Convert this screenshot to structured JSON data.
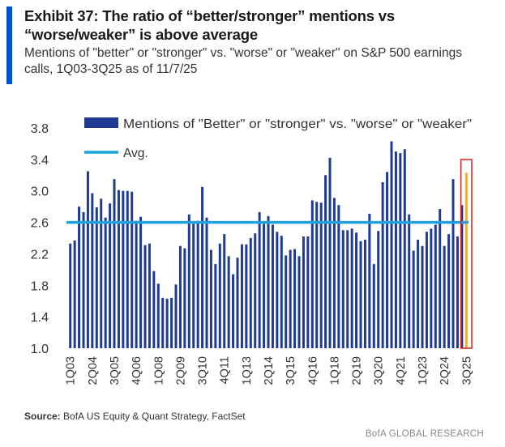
{
  "header": {
    "title": "Exhibit 37: The ratio of “better/stronger” mentions vs “worse/weaker” is above average",
    "subtitle": "Mentions of \"better\" or \"stronger\" vs. \"worse\" or \"weaker\" on S&P 500 earnings calls, 1Q03-3Q25 as of 11/7/25"
  },
  "footer": {
    "source_label": "Source:",
    "source_text": "BofA US Equity & Quant Strategy, FactSet",
    "brand": "BofA GLOBAL RESEARCH"
  },
  "colors": {
    "bar": "#1f3a93",
    "avg": "#1fa3de",
    "highlight": "#d62020",
    "last_bar": "#e8b040"
  },
  "chart_data": {
    "type": "bar",
    "title": "",
    "xlabel": "",
    "ylabel": "",
    "ylim": [
      1.0,
      3.8
    ],
    "yticks": [
      1.0,
      1.4,
      1.8,
      2.2,
      2.6,
      3.0,
      3.4,
      3.8
    ],
    "ytick_labels": [
      "1.0",
      "1.4",
      "1.8",
      "2.2",
      "2.6",
      "3.0",
      "3.4",
      "3.8"
    ],
    "average": 2.6,
    "legend": {
      "bars": "Mentions of \"Better\" or \"stronger\" vs. \"worse\" or \"weaker\"",
      "avg": "Avg.",
      "position": "top"
    },
    "xtick_labels": [
      "1Q03",
      "2Q04",
      "3Q05",
      "4Q06",
      "1Q08",
      "2Q09",
      "3Q10",
      "4Q11",
      "1Q13",
      "2Q14",
      "3Q15",
      "4Q16",
      "1Q18",
      "2Q19",
      "3Q20",
      "4Q21",
      "1Q23",
      "2Q24",
      "3Q25"
    ],
    "highlight": "3Q25",
    "categories": [
      "1Q03",
      "2Q03",
      "3Q03",
      "4Q03",
      "1Q04",
      "2Q04",
      "3Q04",
      "4Q04",
      "1Q05",
      "2Q05",
      "3Q05",
      "4Q05",
      "1Q06",
      "2Q06",
      "3Q06",
      "4Q06",
      "1Q07",
      "2Q07",
      "3Q07",
      "4Q07",
      "1Q08",
      "2Q08",
      "3Q08",
      "4Q08",
      "1Q09",
      "2Q09",
      "3Q09",
      "4Q09",
      "1Q10",
      "2Q10",
      "3Q10",
      "4Q10",
      "1Q11",
      "2Q11",
      "3Q11",
      "4Q11",
      "1Q12",
      "2Q12",
      "3Q12",
      "4Q12",
      "1Q13",
      "2Q13",
      "3Q13",
      "4Q13",
      "1Q14",
      "2Q14",
      "3Q14",
      "4Q14",
      "1Q15",
      "2Q15",
      "3Q15",
      "4Q15",
      "1Q16",
      "2Q16",
      "3Q16",
      "4Q16",
      "1Q17",
      "2Q17",
      "3Q17",
      "4Q17",
      "1Q18",
      "2Q18",
      "3Q18",
      "4Q18",
      "1Q19",
      "2Q19",
      "3Q19",
      "4Q19",
      "1Q20",
      "2Q20",
      "3Q20",
      "4Q20",
      "1Q21",
      "2Q21",
      "3Q21",
      "4Q21",
      "1Q22",
      "2Q22",
      "3Q22",
      "4Q22",
      "1Q23",
      "2Q23",
      "3Q23",
      "4Q23",
      "1Q24",
      "2Q24",
      "3Q24",
      "4Q24",
      "1Q25",
      "2Q25",
      "3Q25"
    ],
    "values": [
      2.33,
      2.37,
      2.8,
      2.73,
      3.25,
      2.97,
      2.79,
      2.9,
      2.66,
      2.84,
      3.15,
      3.01,
      3.0,
      3.0,
      2.99,
      2.62,
      2.67,
      2.31,
      2.33,
      1.98,
      1.82,
      1.64,
      1.63,
      1.64,
      1.81,
      2.3,
      2.27,
      2.7,
      2.58,
      2.62,
      3.05,
      2.66,
      2.25,
      2.07,
      2.33,
      2.45,
      2.17,
      1.94,
      2.15,
      2.32,
      2.32,
      2.4,
      2.46,
      2.73,
      2.58,
      2.68,
      2.57,
      2.48,
      2.43,
      2.18,
      2.25,
      2.26,
      2.17,
      2.42,
      2.42,
      2.88,
      2.86,
      2.85,
      3.2,
      3.42,
      2.91,
      2.82,
      2.5,
      2.5,
      2.52,
      2.47,
      2.36,
      2.38,
      2.71,
      2.07,
      2.49,
      3.11,
      3.24,
      3.63,
      3.5,
      3.48,
      3.53,
      2.7,
      2.24,
      2.38,
      2.3,
      2.48,
      2.52,
      2.57,
      2.77,
      2.3,
      2.45,
      3.15,
      2.42,
      2.82,
      3.23
    ]
  }
}
